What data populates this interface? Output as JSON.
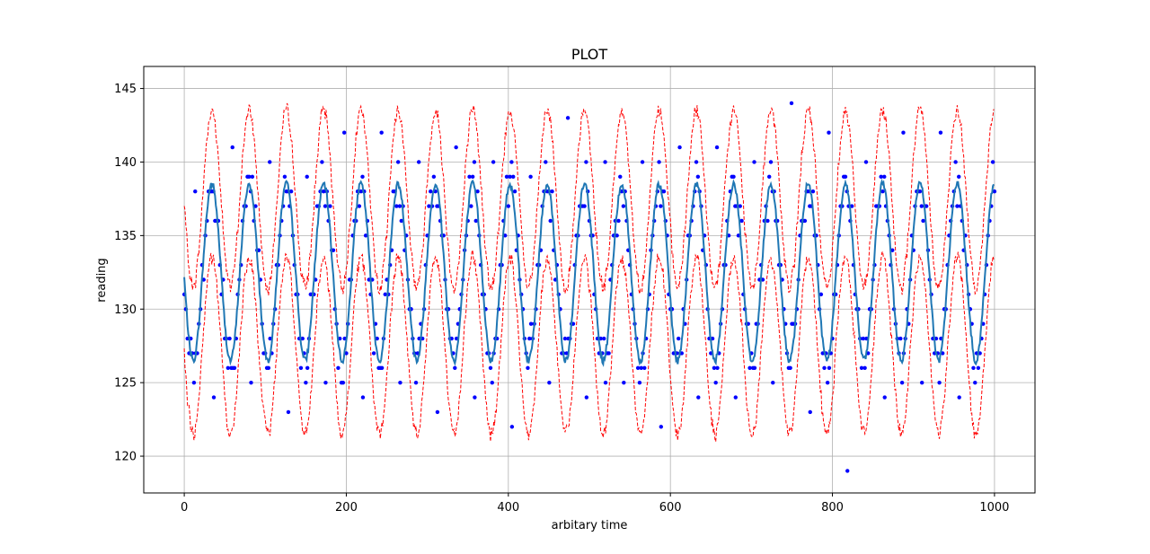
{
  "chart_data": {
    "type": "line",
    "title": "PLOT",
    "xlabel": "arbitary time",
    "ylabel": "reading",
    "xlim": [
      -50,
      1050
    ],
    "ylim": [
      117.5,
      146.5
    ],
    "x_ticks": [
      0,
      200,
      400,
      600,
      800,
      1000
    ],
    "y_ticks": [
      120,
      125,
      130,
      135,
      140,
      145
    ],
    "grid": true,
    "colors": {
      "mean": "#1f77b4",
      "bands": "#ff0000",
      "points": "#0000ff"
    },
    "model": {
      "n": 1000,
      "baseline": 132.5,
      "amplitude": 6,
      "period": 46,
      "band_halfwidth": 5,
      "samples_max": [
        138,
        141,
        140,
        139,
        142,
        142,
        140,
        141,
        140,
        139,
        143,
        140,
        140,
        141,
        141,
        140,
        144,
        142,
        140,
        142,
        142
      ],
      "samples_min": [
        124,
        125,
        123,
        125,
        124,
        125,
        123,
        124,
        122,
        125,
        124,
        125,
        122,
        124,
        124,
        125,
        123,
        119,
        124,
        125,
        124
      ]
    }
  }
}
